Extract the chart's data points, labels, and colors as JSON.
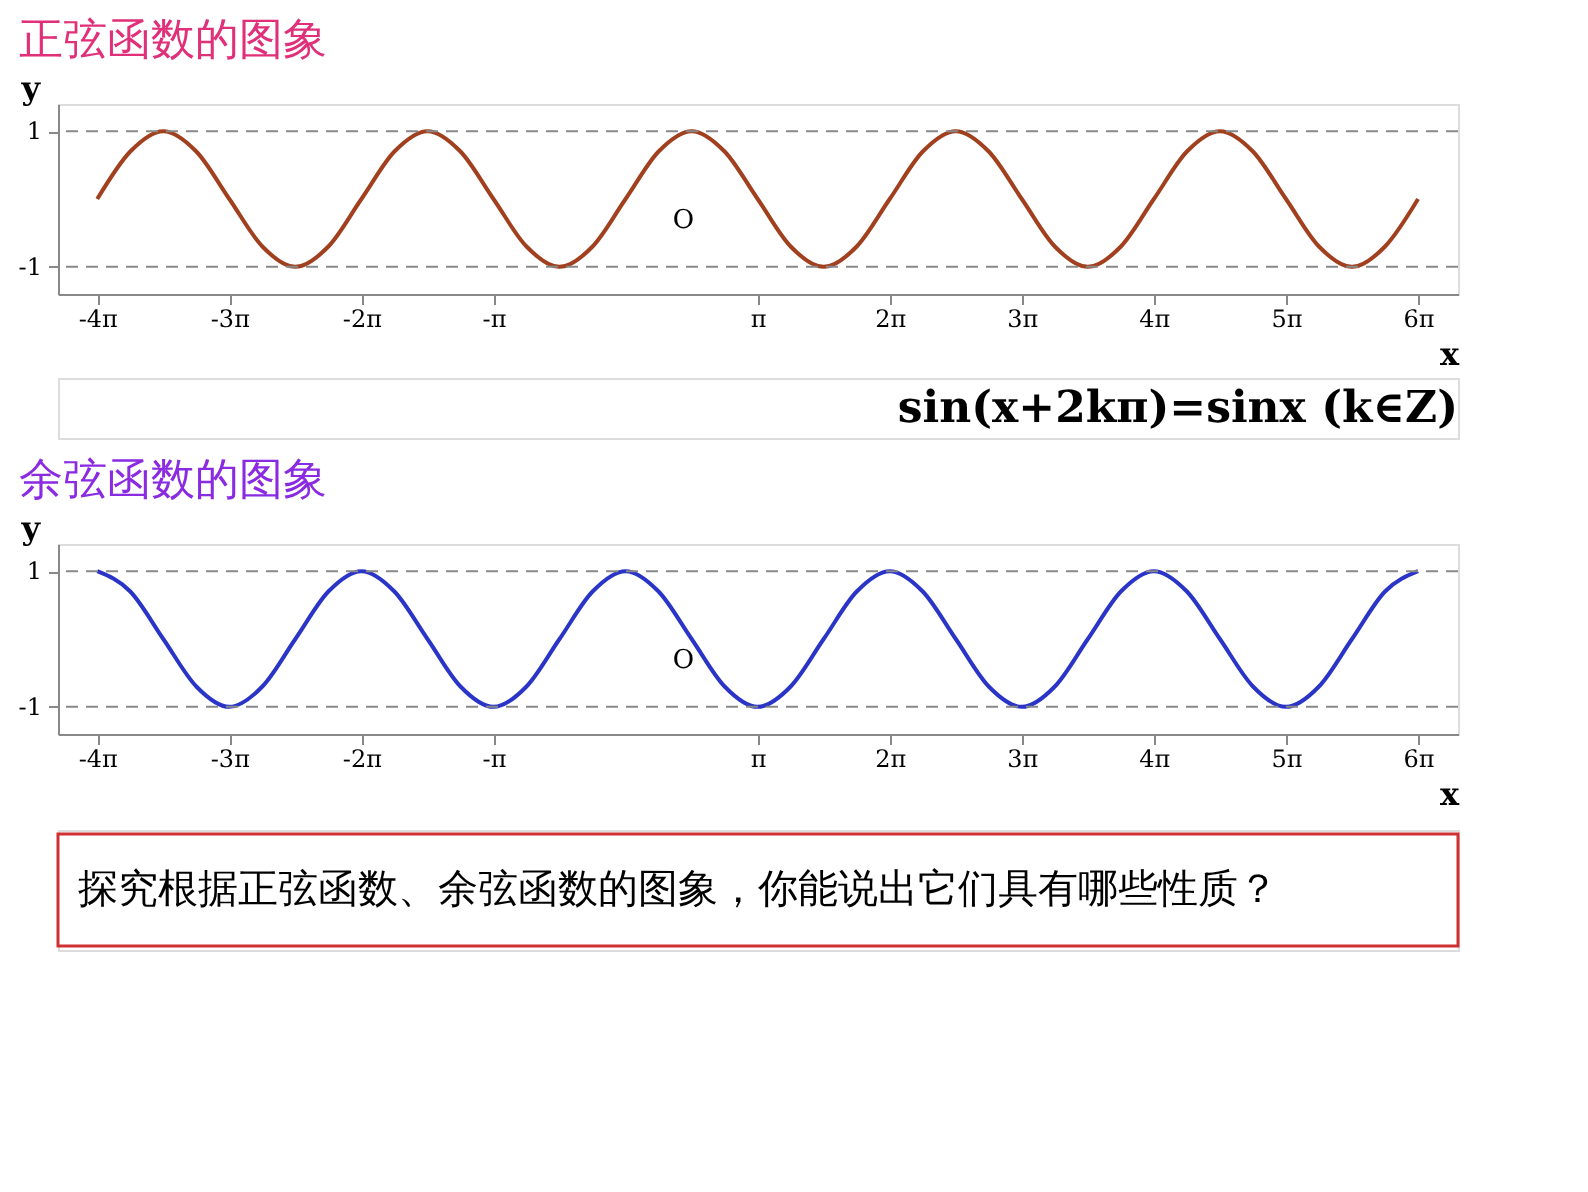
{
  "chart_data": [
    {
      "type": "line",
      "title": "正弦函数的图象",
      "xlabel": "x",
      "ylabel": "y",
      "x": [
        -12.566,
        -11.781,
        -10.996,
        -10.21,
        -9.425,
        -8.639,
        -7.854,
        -7.069,
        -6.283,
        -5.498,
        -4.712,
        -3.927,
        -3.142,
        -2.356,
        -1.571,
        -0.785,
        0,
        0.785,
        1.571,
        2.356,
        3.142,
        3.927,
        4.712,
        5.498,
        6.283,
        7.069,
        7.854,
        8.639,
        9.425,
        10.21,
        10.996,
        11.781,
        12.566,
        13.352,
        14.137,
        14.923,
        15.708,
        16.493,
        17.279,
        18.064,
        18.85
      ],
      "series": [
        {
          "color": "#a0401e",
          "values": [
            0,
            0.7,
            1,
            0.7,
            0,
            -0.7,
            -1,
            -0.7,
            0,
            0.7,
            1,
            0.7,
            0,
            -0.7,
            -1,
            -0.7,
            0,
            0.7,
            1,
            0.7,
            0,
            -0.7,
            -1,
            -0.7,
            0,
            0.7,
            1,
            0.7,
            0,
            -0.7,
            -1,
            -0.7,
            0,
            0.7,
            1,
            0.7,
            0,
            -0.7,
            -1,
            -0.7,
            0
          ]
        }
      ],
      "xlim": [
        -13.5,
        19.8
      ],
      "ylim": [
        -1.4,
        1.4
      ],
      "xticks": [
        {
          "value": -12.566,
          "label": "-4π"
        },
        {
          "value": -9.425,
          "label": "-3π"
        },
        {
          "value": -6.283,
          "label": "-2π"
        },
        {
          "value": -3.142,
          "label": "-π"
        },
        {
          "value": 3.142,
          "label": "π"
        },
        {
          "value": 6.283,
          "label": "2π"
        },
        {
          "value": 9.425,
          "label": "3π"
        },
        {
          "value": 12.566,
          "label": "4π"
        },
        {
          "value": 15.708,
          "label": "5π"
        },
        {
          "value": 18.85,
          "label": "6π"
        }
      ],
      "yticks": [
        -1,
        1
      ],
      "ref_lines": [
        {
          "axis": "y",
          "value": 1,
          "line_style": "dashed",
          "color": "#888888"
        },
        {
          "axis": "y",
          "value": -1,
          "line_style": "dashed",
          "color": "#888888"
        }
      ],
      "annotations": [
        "O",
        "sin(x+2kπ)=sinx (k∈Z)"
      ],
      "grid": false,
      "marker": "none"
    },
    {
      "type": "line",
      "title": "余弦函数的图象",
      "xlabel": "x",
      "ylabel": "y",
      "x": [
        -12.566,
        -11.781,
        -10.996,
        -10.21,
        -9.425,
        -8.639,
        -7.854,
        -7.069,
        -6.283,
        -5.498,
        -4.712,
        -3.927,
        -3.142,
        -2.356,
        -1.571,
        -0.785,
        0,
        0.785,
        1.571,
        2.356,
        3.142,
        3.927,
        4.712,
        5.498,
        6.283,
        7.069,
        7.854,
        8.639,
        9.425,
        10.21,
        10.996,
        11.781,
        12.566,
        13.352,
        14.137,
        14.923,
        15.708,
        16.493,
        17.279,
        18.064,
        18.85
      ],
      "series": [
        {
          "color": "#2a35c8",
          "values": [
            1,
            0.7,
            0,
            -0.7,
            -1,
            -0.7,
            0,
            0.7,
            1,
            0.7,
            0,
            -0.7,
            -1,
            -0.7,
            0,
            0.7,
            1,
            0.7,
            0,
            -0.7,
            -1,
            -0.7,
            0,
            0.7,
            1,
            0.7,
            0,
            -0.7,
            -1,
            -0.7,
            0,
            0.7,
            1,
            0.7,
            0,
            -0.7,
            -1,
            -0.7,
            0,
            0.7,
            1
          ]
        }
      ],
      "xlim": [
        -13.5,
        19.8
      ],
      "ylim": [
        -1.4,
        1.4
      ],
      "xticks": [
        {
          "value": -12.566,
          "label": "-4π"
        },
        {
          "value": -9.425,
          "label": "-3π"
        },
        {
          "value": -6.283,
          "label": "-2π"
        },
        {
          "value": -3.142,
          "label": "-π"
        },
        {
          "value": 3.142,
          "label": "π"
        },
        {
          "value": 6.283,
          "label": "2π"
        },
        {
          "value": 9.425,
          "label": "3π"
        },
        {
          "value": 12.566,
          "label": "4π"
        },
        {
          "value": 15.708,
          "label": "5π"
        },
        {
          "value": 18.85,
          "label": "6π"
        }
      ],
      "yticks": [
        -1,
        1
      ],
      "ref_lines": [
        {
          "axis": "y",
          "value": 1,
          "line_style": "dashed",
          "color": "#888888"
        },
        {
          "axis": "y",
          "value": -1,
          "line_style": "dashed",
          "color": "#888888"
        }
      ],
      "annotations": [
        "O"
      ],
      "grid": false,
      "marker": "none"
    },
    {
      "type": "other",
      "annotations": [
        "探究根据正弦函数、余弦函数的图象，你能说出它们具有哪些性质？"
      ]
    }
  ]
}
